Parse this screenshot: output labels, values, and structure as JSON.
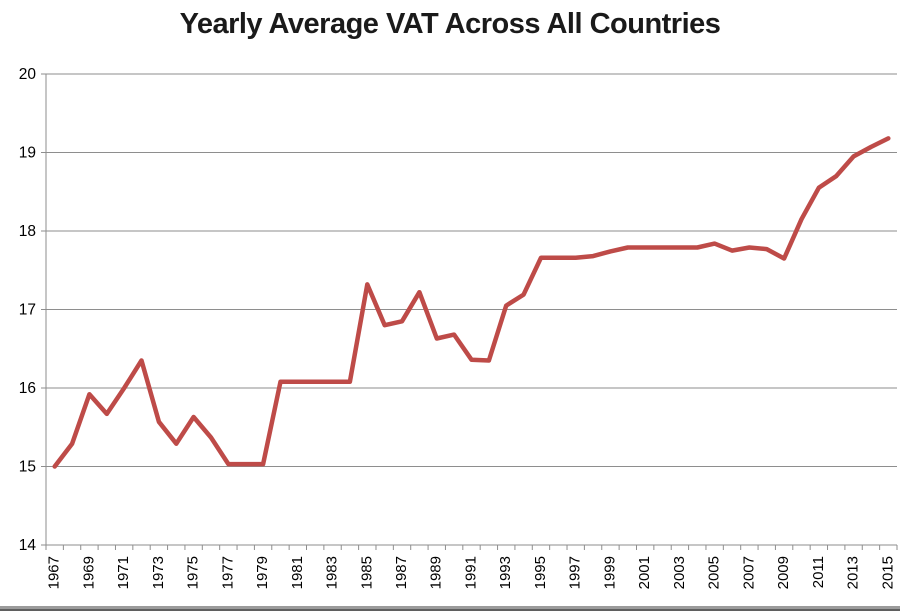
{
  "chart_data": {
    "type": "line",
    "title": "Yearly Average VAT Across All Countries",
    "xlabel": "",
    "ylabel": "",
    "x": [
      1967,
      1968,
      1969,
      1970,
      1971,
      1972,
      1973,
      1974,
      1975,
      1976,
      1977,
      1978,
      1979,
      1980,
      1981,
      1982,
      1983,
      1984,
      1985,
      1986,
      1987,
      1988,
      1989,
      1990,
      1991,
      1992,
      1993,
      1994,
      1995,
      1996,
      1997,
      1998,
      1999,
      2000,
      2001,
      2002,
      2003,
      2004,
      2005,
      2006,
      2007,
      2008,
      2009,
      2010,
      2011,
      2012,
      2013,
      2014,
      2015
    ],
    "series": [
      {
        "name": "Yearly Average VAT",
        "values": [
          15.0,
          15.29,
          15.92,
          15.67,
          16.0,
          16.35,
          15.57,
          15.29,
          15.63,
          15.37,
          15.03,
          15.03,
          15.03,
          16.08,
          16.08,
          16.08,
          16.08,
          16.08,
          17.32,
          16.8,
          16.85,
          17.22,
          16.63,
          16.68,
          16.36,
          16.35,
          17.05,
          17.19,
          17.66,
          17.66,
          17.66,
          17.68,
          17.74,
          17.79,
          17.79,
          17.79,
          17.79,
          17.79,
          17.84,
          17.75,
          17.79,
          17.77,
          17.65,
          18.15,
          18.55,
          18.7,
          18.95,
          19.07,
          19.18
        ]
      }
    ],
    "ylim": [
      14,
      20
    ],
    "yticks": [
      14,
      15,
      16,
      17,
      18,
      19,
      20
    ],
    "xtick_labels": [
      "1967",
      "1969",
      "1971",
      "1973",
      "1975",
      "1977",
      "1979",
      "1981",
      "1983",
      "1985",
      "1987",
      "1989",
      "1991",
      "1993",
      "1995",
      "1997",
      "1999",
      "2001",
      "2003",
      "2005",
      "2007",
      "2009",
      "2011",
      "2013",
      "2015"
    ],
    "grid": "horizontal",
    "legend": "none",
    "colors": {
      "line": "#be4b48",
      "grid": "#8e8e8e",
      "axis": "#8e8e8e",
      "text": "#000000",
      "title": "#1a1a1a",
      "bottom_bar": "#9b9b9b",
      "bottom_bar_edge": "#5f5f5f"
    }
  }
}
